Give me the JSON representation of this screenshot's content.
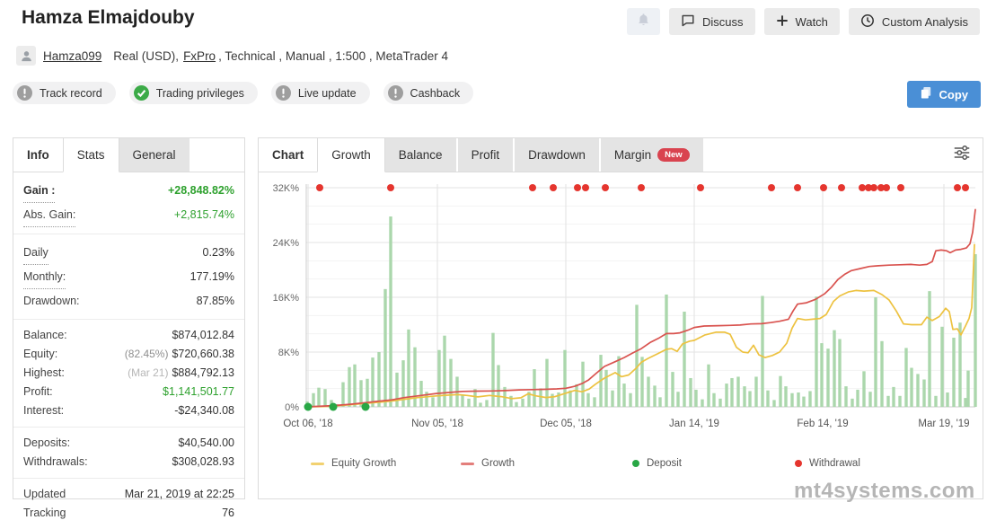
{
  "header": {
    "title": "Hamza Elmajdouby",
    "buttons": {
      "discuss": "Discuss",
      "watch": "Watch",
      "custom_analysis": "Custom Analysis"
    },
    "copy": "Copy"
  },
  "account": {
    "username": "Hamza099",
    "info_prefix": "Real (USD),",
    "broker": "FxPro",
    "info_suffix": ", Technical , Manual , 1:500 , MetaTrader 4"
  },
  "badges": [
    {
      "label": "Track record",
      "icon": "exclamation-circle"
    },
    {
      "label": "Trading privileges",
      "icon": "check-circle"
    },
    {
      "label": "Live update",
      "icon": "exclamation-circle"
    },
    {
      "label": "Cashback",
      "icon": "exclamation-circle"
    }
  ],
  "stats_panel": {
    "tabs": [
      {
        "label": "Info",
        "type": "title"
      },
      {
        "label": "Stats",
        "active": true
      },
      {
        "label": "General",
        "active": false
      }
    ],
    "groups": [
      {
        "size": "big",
        "rows": [
          {
            "label": "Gain :",
            "value": "+28,848.82%",
            "label_bold": true,
            "label_dotted": true,
            "value_green": true,
            "value_bold": true
          },
          {
            "label": "Abs. Gain:",
            "value": "+2,815.74%",
            "label_dotted": true,
            "value_green": true
          }
        ]
      },
      {
        "size": "big",
        "rows": [
          {
            "label": "Daily",
            "value": "0.23%",
            "label_dotted": true
          },
          {
            "label": "Monthly:",
            "value": "177.19%",
            "label_dotted": true
          },
          {
            "label": "Drawdown:",
            "value": "87.85%"
          }
        ]
      },
      {
        "size": "small",
        "rows": [
          {
            "label": "Balance:",
            "value": "$874,012.84"
          },
          {
            "label": "Equity:",
            "value": "$720,660.38",
            "prefix": "(82.45%)"
          },
          {
            "label": "Highest:",
            "value": "$884,792.13",
            "prefix": "(Mar 21)",
            "prefix_light": true
          },
          {
            "label": "Profit:",
            "value": "$1,141,501.77",
            "value_green": true
          },
          {
            "label": "Interest:",
            "value": "-$24,340.08"
          }
        ]
      },
      {
        "size": "small",
        "rows": [
          {
            "label": "Deposits:",
            "value": "$40,540.00"
          },
          {
            "label": "Withdrawals:",
            "value": "$308,028.93"
          }
        ]
      },
      {
        "size": "small",
        "rows": [
          {
            "label": "Updated",
            "value": "Mar 21, 2019 at 22:25"
          },
          {
            "label": "Tracking",
            "value": "76"
          }
        ]
      }
    ]
  },
  "chart_panel": {
    "tabs": [
      {
        "label": "Chart",
        "type": "title"
      },
      {
        "label": "Growth",
        "active": true
      },
      {
        "label": "Balance"
      },
      {
        "label": "Profit"
      },
      {
        "label": "Drawdown"
      },
      {
        "label": "Margin",
        "badge": "New"
      }
    ]
  },
  "chart_data": {
    "type": "line+bar",
    "title": "Growth",
    "unit": "K% (thousands of percent gain)",
    "ylim": [
      0,
      33
    ],
    "x_range": [
      341,
      1086
    ],
    "grid": {
      "major_step": 8,
      "minor_step": 2.6667
    },
    "y_ticks": [
      {
        "label": "32K%",
        "v": 32
      },
      {
        "label": "24K%",
        "v": 24
      },
      {
        "label": "16K%",
        "v": 16
      },
      {
        "label": "8K%",
        "v": 8
      },
      {
        "label": "0%",
        "v": 0
      }
    ],
    "x_ticks": [
      {
        "label": "Oct 06, '18",
        "x": 343
      },
      {
        "label": "Nov 05, '18",
        "x": 487
      },
      {
        "label": "Dec 05, '18",
        "x": 630
      },
      {
        "label": "Jan 14, '19",
        "x": 773
      },
      {
        "label": "Feb 14, '19",
        "x": 916
      },
      {
        "label": "Mar 19, '19",
        "x": 1051
      }
    ],
    "colors": {
      "bar": "#abd7ac",
      "equity": "#edc240",
      "growth": "#d9534f",
      "deposit": "#28a745",
      "withdrawal": "#e5352e",
      "grid_major": "#e3e3e3",
      "grid_minor": "#f3f3f3",
      "grid_vert": "#e2e2e2",
      "axis": "#cccccc"
    },
    "series": [
      {
        "name": "Equity Growth",
        "color": "#edc240",
        "points": [
          [
            341,
            0
          ],
          [
            360,
            0.05
          ],
          [
            371,
            0.12
          ],
          [
            390,
            0.3
          ],
          [
            407,
            0.5
          ],
          [
            420,
            0.65
          ],
          [
            435,
            0.82
          ],
          [
            450,
            1.1
          ],
          [
            465,
            1.35
          ],
          [
            486,
            1.6
          ],
          [
            500,
            1.72
          ],
          [
            510,
            1.78
          ],
          [
            520,
            1.66
          ],
          [
            532,
            1.45
          ],
          [
            545,
            1.66
          ],
          [
            558,
            1.5
          ],
          [
            570,
            1.2
          ],
          [
            580,
            1.32
          ],
          [
            588,
            1.9
          ],
          [
            597,
            1.6
          ],
          [
            608,
            1.36
          ],
          [
            618,
            1.5
          ],
          [
            630,
            2.0
          ],
          [
            640,
            2.4
          ],
          [
            648,
            2.2
          ],
          [
            656,
            2.6
          ],
          [
            663,
            3.3
          ],
          [
            673,
            4.2
          ],
          [
            685,
            5.0
          ],
          [
            692,
            4.4
          ],
          [
            700,
            4.65
          ],
          [
            708,
            5.6
          ],
          [
            714,
            6.5
          ],
          [
            722,
            7.1
          ],
          [
            733,
            7.8
          ],
          [
            742,
            8.4
          ],
          [
            748,
            8.5
          ],
          [
            754,
            8.1
          ],
          [
            760,
            9.2
          ],
          [
            768,
            9.6
          ],
          [
            773,
            9.7
          ],
          [
            785,
            10.5
          ],
          [
            797,
            10.9
          ],
          [
            807,
            10.9
          ],
          [
            813,
            10.6
          ],
          [
            820,
            8.7
          ],
          [
            827,
            8.0
          ],
          [
            833,
            7.9
          ],
          [
            839,
            9.0
          ],
          [
            845,
            7.6
          ],
          [
            852,
            7.2
          ],
          [
            860,
            7.5
          ],
          [
            868,
            8.0
          ],
          [
            876,
            9.3
          ],
          [
            882,
            11.5
          ],
          [
            888,
            12.9
          ],
          [
            897,
            12.7
          ],
          [
            905,
            12.8
          ],
          [
            913,
            12.9
          ],
          [
            920,
            13.5
          ],
          [
            928,
            15.4
          ],
          [
            935,
            16.2
          ],
          [
            945,
            16.8
          ],
          [
            953,
            17.0
          ],
          [
            962,
            16.9
          ],
          [
            973,
            17.0
          ],
          [
            982,
            16.4
          ],
          [
            990,
            15.6
          ],
          [
            998,
            14.0
          ],
          [
            1006,
            12.1
          ],
          [
            1015,
            12.0
          ],
          [
            1026,
            12.0
          ],
          [
            1032,
            13.1
          ],
          [
            1038,
            12.6
          ],
          [
            1046,
            13.2
          ],
          [
            1053,
            14.4
          ],
          [
            1057,
            13.9
          ],
          [
            1061,
            11.3
          ],
          [
            1066,
            11.4
          ],
          [
            1070,
            10.5
          ],
          [
            1075,
            11.8
          ],
          [
            1079,
            12.9
          ],
          [
            1082,
            14.5
          ],
          [
            1085,
            23.7
          ]
        ]
      },
      {
        "name": "Growth",
        "color": "#d9534f",
        "points": [
          [
            341,
            0
          ],
          [
            355,
            0.08
          ],
          [
            371,
            0.18
          ],
          [
            390,
            0.38
          ],
          [
            407,
            0.6
          ],
          [
            420,
            0.8
          ],
          [
            435,
            1.0
          ],
          [
            450,
            1.35
          ],
          [
            465,
            1.6
          ],
          [
            486,
            1.95
          ],
          [
            500,
            2.1
          ],
          [
            515,
            2.25
          ],
          [
            530,
            2.3
          ],
          [
            548,
            2.32
          ],
          [
            562,
            2.38
          ],
          [
            578,
            2.48
          ],
          [
            592,
            2.52
          ],
          [
            606,
            2.56
          ],
          [
            620,
            2.62
          ],
          [
            630,
            2.72
          ],
          [
            640,
            3.0
          ],
          [
            648,
            3.4
          ],
          [
            655,
            3.9
          ],
          [
            663,
            4.8
          ],
          [
            673,
            5.9
          ],
          [
            685,
            6.6
          ],
          [
            695,
            7.2
          ],
          [
            705,
            7.9
          ],
          [
            714,
            8.5
          ],
          [
            724,
            9.4
          ],
          [
            733,
            10.0
          ],
          [
            742,
            10.7
          ],
          [
            750,
            10.7
          ],
          [
            757,
            10.8
          ],
          [
            766,
            11.2
          ],
          [
            773,
            11.6
          ],
          [
            784,
            11.8
          ],
          [
            800,
            11.85
          ],
          [
            812,
            11.9
          ],
          [
            824,
            11.95
          ],
          [
            836,
            12.1
          ],
          [
            848,
            12.15
          ],
          [
            858,
            12.3
          ],
          [
            868,
            12.5
          ],
          [
            878,
            12.8
          ],
          [
            883,
            14.0
          ],
          [
            888,
            15.0
          ],
          [
            898,
            15.2
          ],
          [
            908,
            15.7
          ],
          [
            918,
            16.5
          ],
          [
            926,
            17.5
          ],
          [
            933,
            18.6
          ],
          [
            941,
            19.4
          ],
          [
            948,
            19.9
          ],
          [
            958,
            20.2
          ],
          [
            968,
            20.5
          ],
          [
            978,
            20.6
          ],
          [
            990,
            20.7
          ],
          [
            1002,
            20.75
          ],
          [
            1014,
            20.8
          ],
          [
            1024,
            20.7
          ],
          [
            1032,
            20.8
          ],
          [
            1038,
            21.2
          ],
          [
            1042,
            22.8
          ],
          [
            1048,
            22.9
          ],
          [
            1054,
            22.8
          ],
          [
            1058,
            22.5
          ],
          [
            1064,
            22.9
          ],
          [
            1070,
            23.0
          ],
          [
            1076,
            23.2
          ],
          [
            1080,
            23.8
          ],
          [
            1083,
            25.5
          ],
          [
            1086,
            28.8
          ]
        ]
      }
    ],
    "bars": [
      [
        342,
        0.8
      ],
      [
        349,
        2.0
      ],
      [
        355,
        2.8
      ],
      [
        362,
        2.6
      ],
      [
        369,
        1.0
      ],
      [
        375,
        0.4
      ],
      [
        382,
        3.6
      ],
      [
        389,
        5.8
      ],
      [
        395,
        6.2
      ],
      [
        402,
        3.9
      ],
      [
        409,
        4.1
      ],
      [
        415,
        7.2
      ],
      [
        422,
        8.0
      ],
      [
        429,
        17.2
      ],
      [
        435,
        27.8
      ],
      [
        442,
        5.0
      ],
      [
        449,
        6.8
      ],
      [
        455,
        11.3
      ],
      [
        462,
        8.7
      ],
      [
        469,
        3.8
      ],
      [
        475,
        2.2
      ],
      [
        482,
        1.4
      ],
      [
        489,
        8.3
      ],
      [
        495,
        10.4
      ],
      [
        502,
        7.0
      ],
      [
        509,
        4.4
      ],
      [
        515,
        1.8
      ],
      [
        522,
        1.2
      ],
      [
        529,
        2.6
      ],
      [
        535,
        0.6
      ],
      [
        542,
        1.0
      ],
      [
        549,
        10.8
      ],
      [
        555,
        6.1
      ],
      [
        562,
        2.9
      ],
      [
        569,
        1.6
      ],
      [
        575,
        0.7
      ],
      [
        582,
        1.2
      ],
      [
        589,
        2.2
      ],
      [
        595,
        5.5
      ],
      [
        602,
        2.7
      ],
      [
        609,
        7.0
      ],
      [
        615,
        1.9
      ],
      [
        622,
        2.1
      ],
      [
        629,
        8.3
      ],
      [
        635,
        2.4
      ],
      [
        642,
        3.3
      ],
      [
        649,
        6.6
      ],
      [
        655,
        2.0
      ],
      [
        662,
        1.4
      ],
      [
        669,
        7.6
      ],
      [
        675,
        5.4
      ],
      [
        682,
        2.4
      ],
      [
        689,
        7.4
      ],
      [
        695,
        3.4
      ],
      [
        702,
        2.0
      ],
      [
        709,
        14.9
      ],
      [
        715,
        7.3
      ],
      [
        722,
        4.4
      ],
      [
        729,
        3.1
      ],
      [
        735,
        1.4
      ],
      [
        742,
        16.4
      ],
      [
        749,
        5.1
      ],
      [
        755,
        2.2
      ],
      [
        762,
        13.9
      ],
      [
        769,
        4.2
      ],
      [
        775,
        2.5
      ],
      [
        782,
        1.1
      ],
      [
        789,
        6.2
      ],
      [
        795,
        2.0
      ],
      [
        802,
        1.2
      ],
      [
        809,
        3.4
      ],
      [
        815,
        4.2
      ],
      [
        822,
        4.4
      ],
      [
        829,
        3.0
      ],
      [
        835,
        2.3
      ],
      [
        842,
        4.4
      ],
      [
        849,
        16.2
      ],
      [
        855,
        2.4
      ],
      [
        862,
        1.0
      ],
      [
        869,
        4.5
      ],
      [
        875,
        3.0
      ],
      [
        882,
        2.0
      ],
      [
        889,
        2.1
      ],
      [
        895,
        1.5
      ],
      [
        902,
        2.3
      ],
      [
        909,
        16.1
      ],
      [
        915,
        9.3
      ],
      [
        922,
        8.5
      ],
      [
        929,
        11.2
      ],
      [
        935,
        9.9
      ],
      [
        942,
        3.0
      ],
      [
        949,
        1.2
      ],
      [
        955,
        2.5
      ],
      [
        962,
        5.2
      ],
      [
        969,
        2.2
      ],
      [
        975,
        16.0
      ],
      [
        982,
        9.6
      ],
      [
        989,
        1.6
      ],
      [
        995,
        2.9
      ],
      [
        1002,
        1.6
      ],
      [
        1009,
        8.6
      ],
      [
        1015,
        5.7
      ],
      [
        1022,
        4.8
      ],
      [
        1029,
        4.0
      ],
      [
        1035,
        16.9
      ],
      [
        1042,
        1.6
      ],
      [
        1049,
        11.7
      ],
      [
        1055,
        2.1
      ],
      [
        1062,
        10.1
      ],
      [
        1069,
        12.3
      ],
      [
        1075,
        1.3
      ],
      [
        1078,
        5.3
      ],
      [
        1086,
        22.3
      ]
    ],
    "deposits": {
      "v": 0,
      "x": [
        343,
        371,
        407
      ]
    },
    "withdrawals": {
      "v": 32,
      "x": [
        356,
        435,
        593,
        616,
        643,
        652,
        674,
        714,
        780,
        859,
        888,
        917,
        937,
        960,
        967,
        973,
        981,
        987,
        1003,
        1066,
        1075
      ]
    },
    "legend": [
      {
        "label": "Equity Growth",
        "swatch": "line",
        "color": "#edc240"
      },
      {
        "label": "Growth",
        "swatch": "line",
        "color": "#d9534f"
      },
      {
        "label": "Deposit",
        "swatch": "dot",
        "color": "#28a745"
      },
      {
        "label": "Withdrawal",
        "swatch": "dot",
        "color": "#e5352e"
      }
    ]
  },
  "watermark": "mt4systems.com"
}
